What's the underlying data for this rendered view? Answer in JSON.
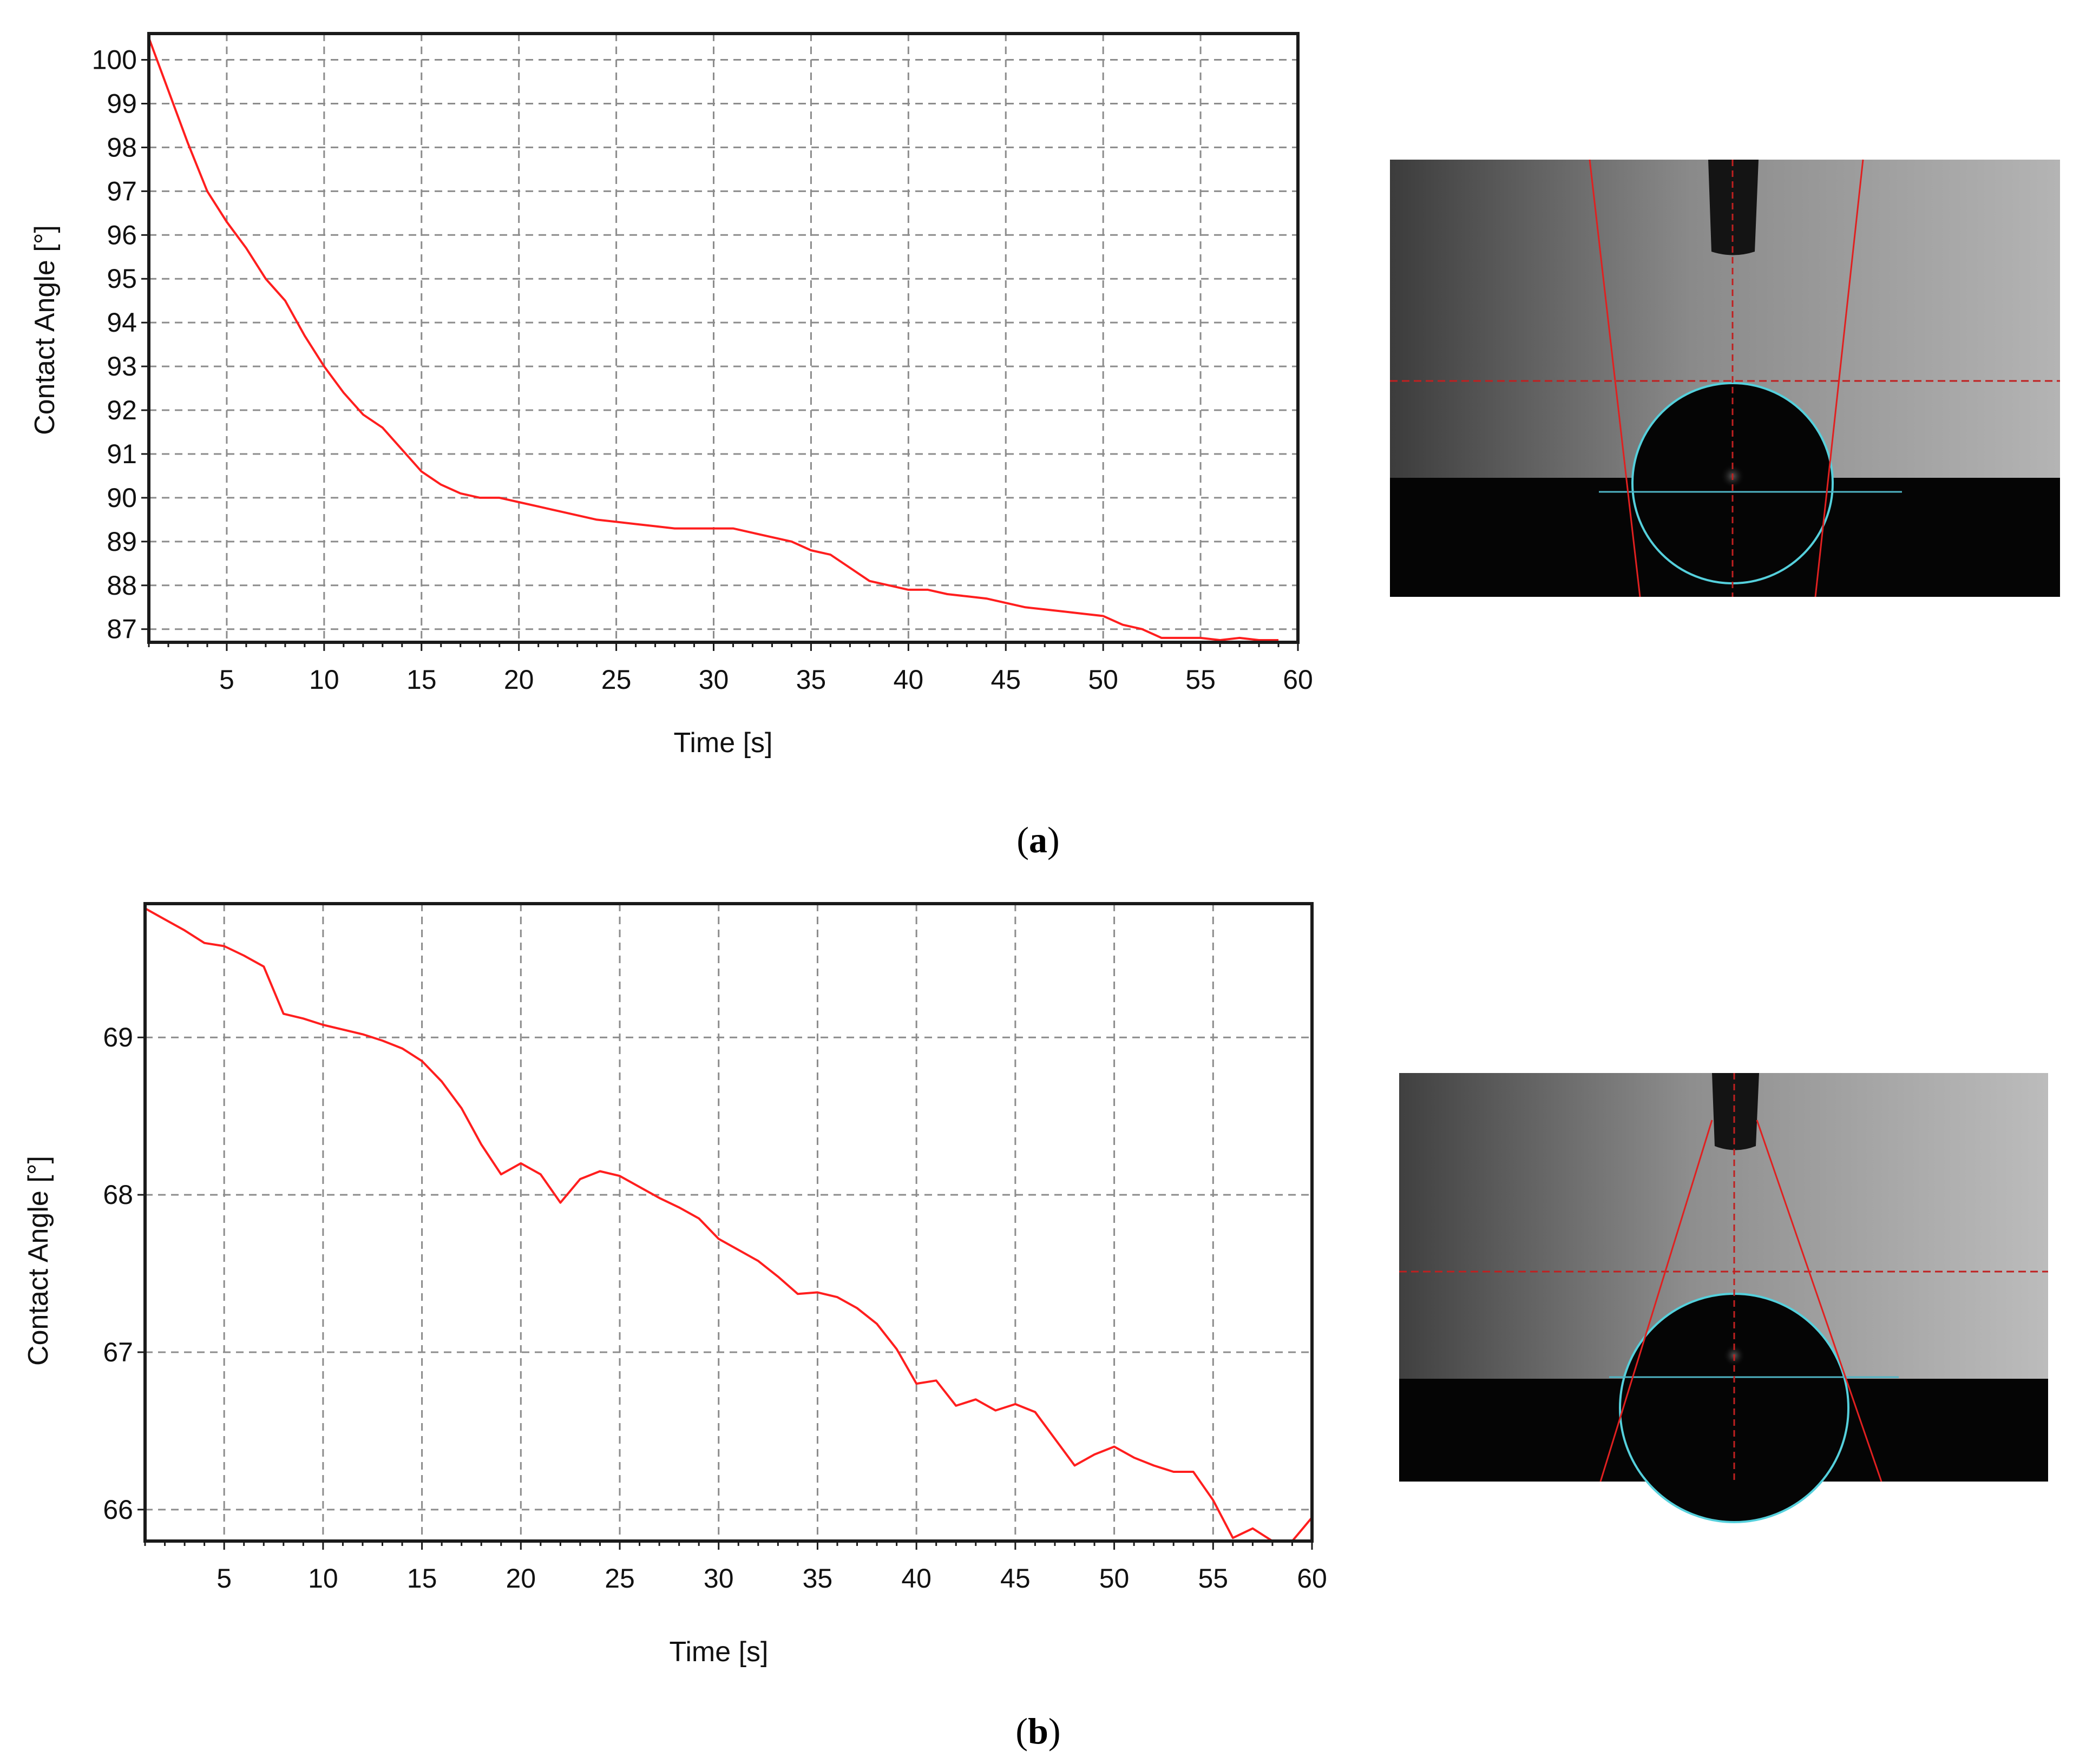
{
  "panels": [
    {
      "label": "a",
      "chart_data": {
        "type": "line",
        "xlabel": "Time [s]",
        "ylabel": "Contact Angle [°]",
        "xlim": [
          1,
          60
        ],
        "ylim": [
          86.7,
          100.6
        ],
        "x_ticks": [
          5,
          10,
          15,
          20,
          25,
          30,
          35,
          40,
          45,
          50,
          55,
          60
        ],
        "y_ticks": [
          87,
          88,
          89,
          90,
          91,
          92,
          93,
          94,
          95,
          96,
          97,
          98,
          99,
          100
        ],
        "grid": true,
        "series": [
          {
            "color": "#ff1e1e",
            "x": [
              1,
              2,
              3,
              4,
              5,
              6,
              7,
              8,
              9,
              10,
              11,
              12,
              13,
              14,
              15,
              16,
              17,
              18,
              19,
              20,
              21,
              22,
              23,
              24,
              25,
              26,
              27,
              28,
              29,
              30,
              31,
              32,
              33,
              34,
              35,
              36,
              37,
              38,
              39,
              40,
              41,
              42,
              43,
              44,
              45,
              46,
              47,
              48,
              49,
              50,
              51,
              52,
              53,
              54,
              55,
              56,
              57,
              58,
              59
            ],
            "y": [
              100.5,
              99.3,
              98.1,
              97.0,
              96.3,
              95.7,
              95.0,
              94.5,
              93.7,
              93.0,
              92.4,
              91.9,
              91.6,
              91.1,
              90.6,
              90.3,
              90.1,
              90.0,
              90.0,
              89.9,
              89.8,
              89.7,
              89.6,
              89.5,
              89.45,
              89.4,
              89.35,
              89.3,
              89.3,
              89.3,
              89.3,
              89.2,
              89.1,
              89.0,
              88.8,
              88.7,
              88.4,
              88.1,
              88.0,
              87.9,
              87.9,
              87.8,
              87.75,
              87.7,
              87.6,
              87.5,
              87.45,
              87.4,
              87.35,
              87.3,
              87.1,
              87.0,
              86.8,
              86.8,
              86.8,
              86.75,
              86.8,
              86.75,
              86.75
            ]
          }
        ]
      }
    },
    {
      "label": "b",
      "chart_data": {
        "type": "line",
        "xlabel": "Time [s]",
        "ylabel": "Contact Angle [°]",
        "xlim": [
          1,
          60
        ],
        "ylim": [
          65.8,
          69.85
        ],
        "x_ticks": [
          5,
          10,
          15,
          20,
          25,
          30,
          35,
          40,
          45,
          50,
          55,
          60
        ],
        "y_ticks": [
          66,
          67,
          68,
          69
        ],
        "grid": true,
        "series": [
          {
            "color": "#ff1e1e",
            "x": [
              1,
              2,
              3,
              4,
              5,
              6,
              7,
              8,
              9,
              10,
              11,
              12,
              13,
              14,
              15,
              16,
              17,
              18,
              19,
              20,
              21,
              22,
              23,
              24,
              25,
              26,
              27,
              28,
              29,
              30,
              31,
              32,
              33,
              34,
              35,
              36,
              37,
              38,
              39,
              40,
              41,
              42,
              43,
              44,
              45,
              46,
              47,
              48,
              49,
              50,
              51,
              52,
              53,
              54,
              55,
              56,
              57,
              58,
              59,
              60
            ],
            "y": [
              69.82,
              69.75,
              69.68,
              69.6,
              69.58,
              69.52,
              69.45,
              69.15,
              69.12,
              69.08,
              69.05,
              69.02,
              68.98,
              68.93,
              68.85,
              68.72,
              68.55,
              68.32,
              68.13,
              68.2,
              68.13,
              67.95,
              68.1,
              68.15,
              68.12,
              68.05,
              67.98,
              67.92,
              67.85,
              67.72,
              67.65,
              67.58,
              67.48,
              67.37,
              67.38,
              67.35,
              67.28,
              67.18,
              67.02,
              66.8,
              66.82,
              66.66,
              66.7,
              66.63,
              66.67,
              66.62,
              66.45,
              66.28,
              66.35,
              66.4,
              66.33,
              66.28,
              66.24,
              66.24,
              66.06,
              65.82,
              65.88,
              65.8,
              65.8,
              65.95
            ]
          }
        ]
      }
    }
  ],
  "photo": {
    "background_light": "#b5b5b5",
    "background_dark": "#3a3a3a",
    "substrate": "#050505",
    "drop_outline": "#55d0dc",
    "tangent": "#e02020"
  }
}
